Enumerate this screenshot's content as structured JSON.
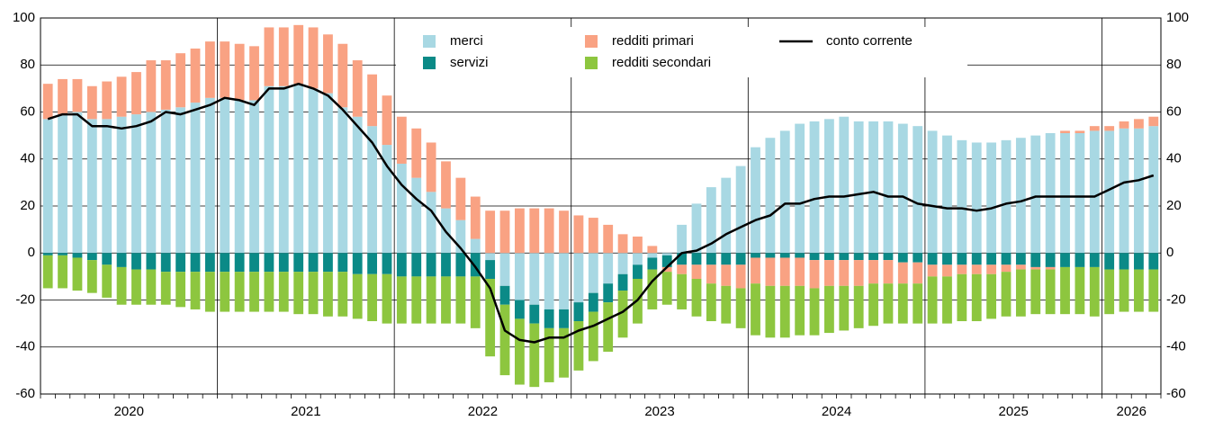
{
  "chart_data": {
    "type": "bar",
    "categories": [
      null,
      null,
      null,
      null,
      null,
      null,
      null,
      null,
      null,
      null,
      null,
      null,
      null,
      null,
      null,
      null,
      null,
      null,
      null,
      null,
      null,
      null,
      null,
      null,
      null,
      null,
      null,
      null,
      null,
      null,
      null,
      null,
      null,
      null,
      null,
      null,
      null,
      null,
      null,
      null,
      null,
      null,
      null,
      null,
      null,
      null,
      null,
      null,
      null,
      null,
      null,
      null,
      null,
      null,
      null,
      null,
      null,
      null,
      null,
      null,
      null,
      null,
      null,
      null,
      null,
      null,
      null,
      null,
      null,
      null,
      null,
      null,
      null,
      null,
      null,
      null
    ],
    "year_labels": [
      "2020",
      "2021",
      "2022",
      "2023",
      "2024",
      "2025",
      "2026"
    ],
    "ylim": [
      -60,
      100
    ],
    "yticks": [
      -60,
      -40,
      -20,
      0,
      20,
      40,
      60,
      80,
      100
    ],
    "grid": true,
    "series": [
      {
        "name": "merci",
        "color": "#a8d8e3",
        "values": [
          57,
          59,
          60,
          57,
          57,
          58,
          59,
          60,
          61,
          62,
          64,
          66,
          66,
          65,
          65,
          71,
          71,
          72,
          70,
          68,
          62,
          58,
          54,
          46,
          38,
          32,
          26,
          19,
          14,
          6,
          -3,
          -14,
          -20,
          -22,
          -24,
          -24,
          -21,
          -17,
          -13,
          -9,
          -5,
          -2,
          -1,
          12,
          21,
          28,
          32,
          37,
          45,
          49,
          52,
          55,
          56,
          57,
          58,
          56,
          56,
          56,
          55,
          54,
          52,
          50,
          48,
          47,
          47,
          48,
          49,
          50,
          51,
          51,
          51,
          52,
          52,
          53,
          53,
          54
        ]
      },
      {
        "name": "servizi",
        "color": "#0b8a87",
        "values": [
          -1,
          -1,
          -2,
          -3,
          -5,
          -6,
          -7,
          -7,
          -8,
          -8,
          -8,
          -8,
          -8,
          -8,
          -8,
          -8,
          -8,
          -8,
          -8,
          -8,
          -8,
          -9,
          -9,
          -9,
          -10,
          -10,
          -10,
          -10,
          -10,
          -10,
          -8,
          -8,
          -8,
          -8,
          -8,
          -8,
          -8,
          -8,
          -8,
          -7,
          -6,
          -5,
          -5,
          -5,
          -5,
          -5,
          -5,
          -5,
          -2,
          -2,
          -2,
          -2,
          -3,
          -3,
          -3,
          -3,
          -3,
          -3,
          -4,
          -4,
          -5,
          -5,
          -5,
          -5,
          -5,
          -5,
          -5,
          -6,
          -6,
          -6,
          -6,
          -6,
          -7,
          -7,
          -7,
          -7
        ]
      },
      {
        "name": "redditi primari",
        "color": "#f9a283",
        "values": [
          15,
          15,
          14,
          14,
          16,
          17,
          18,
          22,
          21,
          23,
          23,
          24,
          24,
          24,
          23,
          25,
          25,
          25,
          26,
          25,
          27,
          24,
          22,
          21,
          20,
          21,
          21,
          20,
          18,
          18,
          18,
          18,
          19,
          19,
          19,
          18,
          16,
          15,
          12,
          8,
          7,
          3,
          -2,
          -4,
          -6,
          -8,
          -9,
          -10,
          -11,
          -12,
          -12,
          -12,
          -12,
          -11,
          -11,
          -11,
          -10,
          -10,
          -9,
          -9,
          -5,
          -5,
          -4,
          -4,
          -4,
          -3,
          -2,
          -1,
          -1,
          1,
          1,
          2,
          2,
          3,
          4,
          4
        ]
      },
      {
        "name": "redditi secondari",
        "color": "#8dc63f",
        "values": [
          -14,
          -14,
          -14,
          -14,
          -14,
          -16,
          -15,
          -15,
          -14,
          -15,
          -16,
          -17,
          -17,
          -17,
          -17,
          -17,
          -17,
          -18,
          -18,
          -19,
          -19,
          -19,
          -20,
          -21,
          -20,
          -20,
          -20,
          -20,
          -20,
          -22,
          -33,
          -30,
          -28,
          -27,
          -23,
          -21,
          -21,
          -21,
          -21,
          -20,
          -19,
          -17,
          -14,
          -15,
          -16,
          -16,
          -16,
          -17,
          -22,
          -22,
          -22,
          -21,
          -20,
          -20,
          -19,
          -18,
          -18,
          -17,
          -17,
          -17,
          -20,
          -20,
          -20,
          -20,
          -19,
          -19,
          -20,
          -19,
          -19,
          -20,
          -20,
          -21,
          -19,
          -18,
          -18,
          -18
        ]
      }
    ],
    "line": {
      "name": "conto corrente",
      "color": "#000000",
      "values": [
        57,
        59,
        59,
        54,
        54,
        53,
        54,
        56,
        60,
        59,
        61,
        63,
        66,
        65,
        63,
        70,
        70,
        72,
        70,
        67,
        61,
        54,
        47,
        37,
        29,
        23,
        18,
        9,
        2,
        -6,
        -15,
        -33,
        -37,
        -38,
        -36,
        -36,
        -33,
        -31,
        -28,
        -25,
        -20,
        -12,
        -6,
        0,
        1,
        4,
        8,
        11,
        14,
        16,
        21,
        21,
        23,
        24,
        24,
        25,
        26,
        24,
        24,
        21,
        20,
        19,
        19,
        18,
        19,
        21,
        22,
        24,
        24,
        24,
        24,
        24,
        27,
        30,
        31,
        33
      ]
    }
  }
}
